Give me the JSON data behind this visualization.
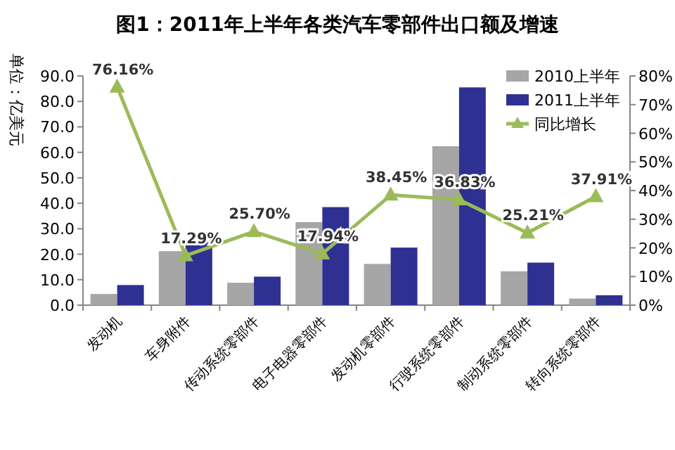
{
  "chart_data": {
    "type": "bar",
    "title": "图1：2011年上半年各类汽车零部件出口额及增速",
    "ylabel": "单位：亿美元",
    "categories": [
      "发动机",
      "车身附件",
      "传动系统零部件",
      "电子电器零部件",
      "发动机零部件",
      "行驶系统零部件",
      "制动系统零部件",
      "转向系统零部件"
    ],
    "series": [
      {
        "name": "2010上半年",
        "color": "#a6a6a6",
        "values": [
          4.4,
          21.2,
          8.8,
          32.6,
          16.2,
          62.4,
          13.3,
          2.6
        ]
      },
      {
        "name": "2011上半年",
        "color": "#2e3192",
        "values": [
          7.9,
          24.7,
          11.2,
          38.5,
          22.6,
          85.5,
          16.7,
          3.9
        ]
      },
      {
        "name": "同比增长",
        "type": "line",
        "axis": "y2",
        "color": "#9bbb59",
        "marker": "triangle",
        "values": [
          76.16,
          17.29,
          25.7,
          17.94,
          38.45,
          36.83,
          25.21,
          37.91
        ],
        "value_labels": [
          "76.16%",
          "17.29%",
          "25.70%",
          "17.94%",
          "38.45%",
          "36.83%",
          "25.21%",
          "37.91%"
        ]
      }
    ],
    "ylim": [
      0,
      90
    ],
    "yticks": [
      {
        "value": 0,
        "label": "0.0"
      },
      {
        "value": 10,
        "label": "10.0"
      },
      {
        "value": 20,
        "label": "20.0"
      },
      {
        "value": 30,
        "label": "30.0"
      },
      {
        "value": 40,
        "label": "40.0"
      },
      {
        "value": 50,
        "label": "50.0"
      },
      {
        "value": 60,
        "label": "60.0"
      },
      {
        "value": 70,
        "label": "70.0"
      },
      {
        "value": 80,
        "label": "80.0"
      },
      {
        "value": 90,
        "label": "90.0"
      }
    ],
    "y2lim": [
      0,
      80
    ],
    "y2ticks": [
      {
        "value": 0,
        "label": "0%"
      },
      {
        "value": 10,
        "label": "10%"
      },
      {
        "value": 20,
        "label": "20%"
      },
      {
        "value": 30,
        "label": "30%"
      },
      {
        "value": 40,
        "label": "40%"
      },
      {
        "value": 50,
        "label": "50%"
      },
      {
        "value": 60,
        "label": "60%"
      },
      {
        "value": 70,
        "label": "70%"
      },
      {
        "value": 80,
        "label": "80%"
      }
    ],
    "legend": "top right",
    "grid": false
  }
}
